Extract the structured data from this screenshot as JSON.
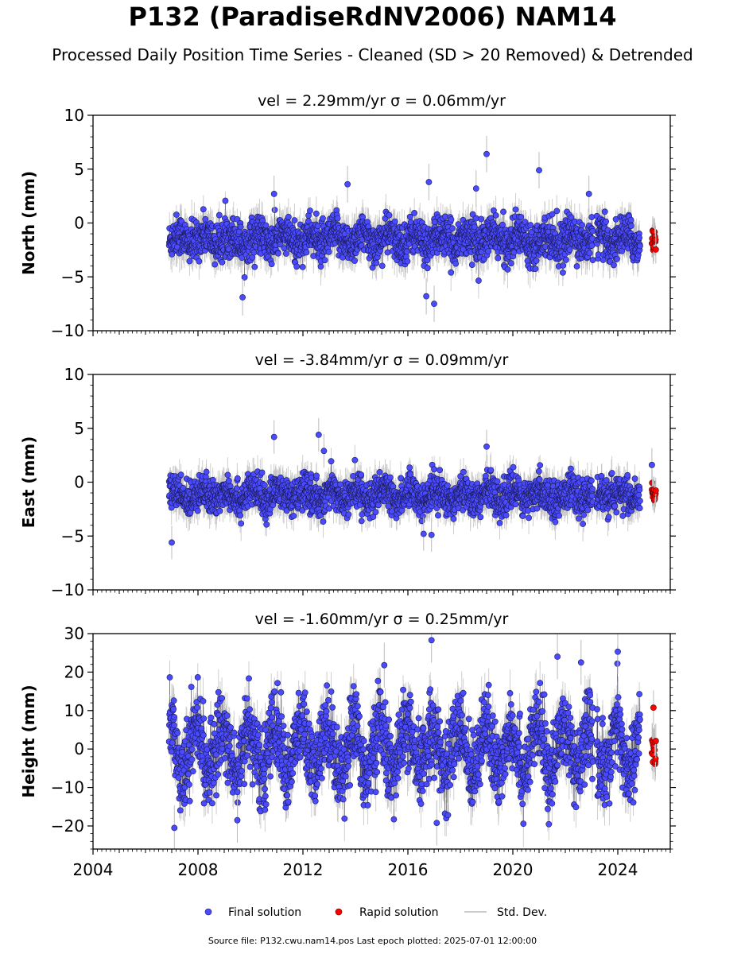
{
  "title": "P132 (ParadiseRdNV2006) NAM14",
  "subtitle": "Processed Daily Position Time Series - Cleaned (SD > 20 Removed) & Detrended",
  "source_note": "Source file: P132.cwu.nam14.pos  Last epoch plotted: 2025-07-01 12:00:00",
  "colors": {
    "final": "#4a4aff",
    "rapid": "#ff0000",
    "std": "#bbbbbb"
  },
  "chart_data": [
    {
      "type": "scatter",
      "name": "north",
      "title": "vel = 2.29mm/yr   σ = 0.06mm/yr",
      "ylabel": "North (mm)",
      "xlim": [
        2004,
        2026
      ],
      "ylim": [
        -10,
        10
      ],
      "yticks": [
        -10,
        -5,
        0,
        5,
        10
      ],
      "xticks": [
        2004,
        2008,
        2012,
        2016,
        2020,
        2024
      ],
      "show_xtick_labels": false,
      "data_start": 2006.9,
      "data_end": 2025.0,
      "gaps": [
        [
          2023.05,
          2023.2
        ],
        [
          2024.85,
          2025.25
        ]
      ],
      "rapid_range": [
        2025.3,
        2025.45
      ],
      "approx_mean_y": -1.5,
      "approx_noise_sd": 0.9,
      "approx_sigma": 1.3,
      "outliers": [
        [
          2019.0,
          6.4
        ],
        [
          2021.0,
          4.9
        ],
        [
          2016.7,
          -6.8
        ],
        [
          2017.0,
          -7.5
        ],
        [
          2009.7,
          -6.9
        ],
        [
          2013.7,
          3.6
        ],
        [
          2010.9,
          2.7
        ],
        [
          2022.9,
          2.7
        ],
        [
          2016.8,
          3.8
        ],
        [
          2018.6,
          3.2
        ]
      ]
    },
    {
      "type": "scatter",
      "name": "east",
      "title": "vel = -3.84mm/yr   σ = 0.09mm/yr",
      "ylabel": "East (mm)",
      "xlim": [
        2004,
        2026
      ],
      "ylim": [
        -10,
        10
      ],
      "yticks": [
        -10,
        -5,
        0,
        5,
        10
      ],
      "xticks": [
        2004,
        2008,
        2012,
        2016,
        2020,
        2024
      ],
      "show_xtick_labels": false,
      "data_start": 2006.9,
      "data_end": 2025.0,
      "gaps": [
        [
          2023.05,
          2023.2
        ],
        [
          2024.85,
          2025.25
        ]
      ],
      "rapid_range": [
        2025.3,
        2025.45
      ],
      "approx_mean_y": -1.2,
      "approx_noise_sd": 0.8,
      "approx_sigma": 1.2,
      "outliers": [
        [
          2010.9,
          4.2
        ],
        [
          2012.6,
          4.4
        ],
        [
          2007.0,
          -5.6
        ],
        [
          2016.6,
          -4.8
        ],
        [
          2016.9,
          -4.9
        ],
        [
          2019.0,
          3.3
        ],
        [
          2012.8,
          2.9
        ],
        [
          2025.3,
          1.6
        ]
      ]
    },
    {
      "type": "scatter",
      "name": "height",
      "title": "vel = -1.60mm/yr   σ = 0.25mm/yr",
      "ylabel": "Height (mm)",
      "xlim": [
        2004,
        2026
      ],
      "ylim": [
        -26,
        30
      ],
      "yticks": [
        -20,
        -10,
        0,
        10,
        20,
        30
      ],
      "xticks": [
        2004,
        2008,
        2012,
        2016,
        2020,
        2024
      ],
      "xtick_labels": [
        "2004",
        "2008",
        "2012",
        "2016",
        "2020",
        "2024"
      ],
      "show_xtick_labels": true,
      "data_start": 2006.9,
      "data_end": 2025.0,
      "gaps": [
        [
          2023.05,
          2023.2
        ],
        [
          2024.85,
          2025.25
        ]
      ],
      "rapid_range": [
        2025.3,
        2025.45
      ],
      "approx_mean_y": 0,
      "approx_noise_sd": 5.0,
      "approx_sigma": 4.5,
      "outliers": [
        [
          2016.9,
          28.3
        ],
        [
          2024.0,
          25.3
        ],
        [
          2021.7,
          24.0
        ],
        [
          2007.1,
          -20.5
        ],
        [
          2017.1,
          -19.2
        ],
        [
          2009.5,
          -18.5
        ],
        [
          2022.6,
          22.5
        ],
        [
          2015.1,
          21.8
        ]
      ]
    }
  ],
  "legend": {
    "final_label": "Final solution",
    "rapid_label": "Rapid solution",
    "std_label": "Std. Dev."
  }
}
